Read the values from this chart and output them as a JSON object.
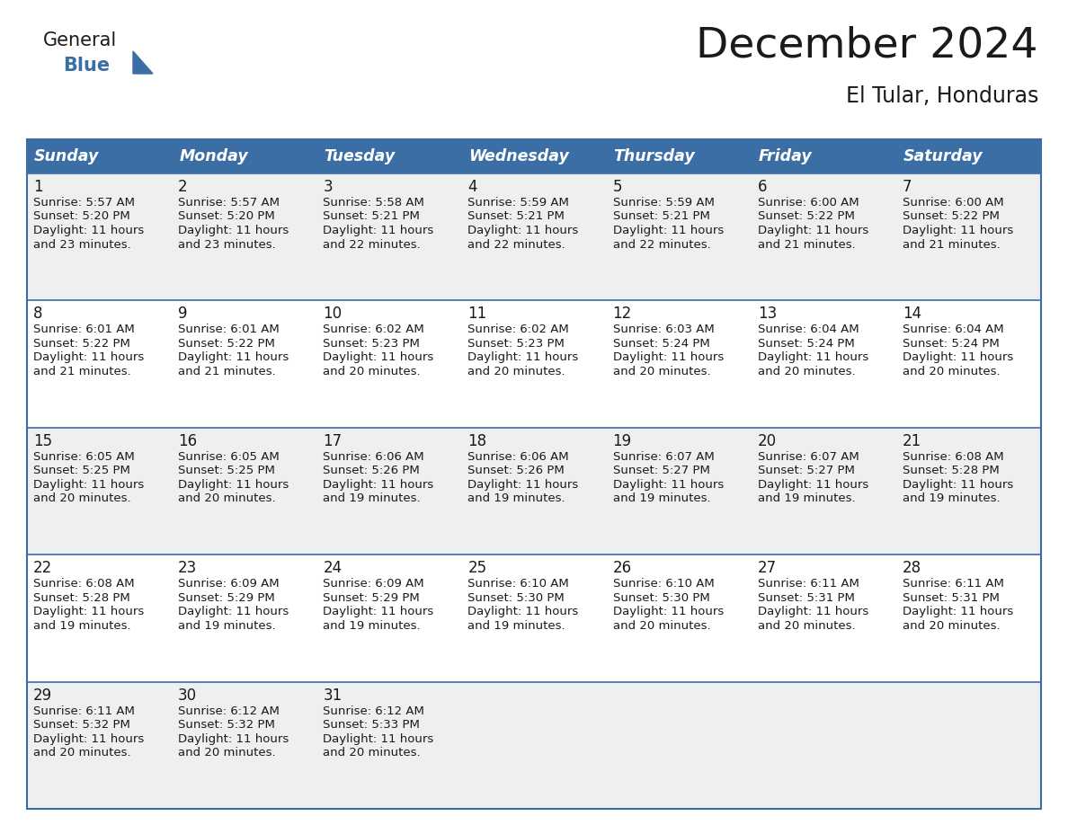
{
  "title": "December 2024",
  "subtitle": "El Tular, Honduras",
  "header_bg_color": "#3A6EA5",
  "header_text_color": "#FFFFFF",
  "cell_bg_even": "#EFEFEF",
  "cell_bg_odd": "#FFFFFF",
  "border_color": "#3A6EA5",
  "text_color": "#1a1a1a",
  "day_headers": [
    "Sunday",
    "Monday",
    "Tuesday",
    "Wednesday",
    "Thursday",
    "Friday",
    "Saturday"
  ],
  "title_fontsize": 34,
  "subtitle_fontsize": 17,
  "header_fontsize": 12.5,
  "day_num_fontsize": 12,
  "cell_text_fontsize": 9.5,
  "weeks": [
    [
      {
        "day": 1,
        "sunrise": "5:57 AM",
        "sunset": "5:20 PM",
        "daylight": "11 hours",
        "daylight2": "and 23 minutes."
      },
      {
        "day": 2,
        "sunrise": "5:57 AM",
        "sunset": "5:20 PM",
        "daylight": "11 hours",
        "daylight2": "and 23 minutes."
      },
      {
        "day": 3,
        "sunrise": "5:58 AM",
        "sunset": "5:21 PM",
        "daylight": "11 hours",
        "daylight2": "and 22 minutes."
      },
      {
        "day": 4,
        "sunrise": "5:59 AM",
        "sunset": "5:21 PM",
        "daylight": "11 hours",
        "daylight2": "and 22 minutes."
      },
      {
        "day": 5,
        "sunrise": "5:59 AM",
        "sunset": "5:21 PM",
        "daylight": "11 hours",
        "daylight2": "and 22 minutes."
      },
      {
        "day": 6,
        "sunrise": "6:00 AM",
        "sunset": "5:22 PM",
        "daylight": "11 hours",
        "daylight2": "and 21 minutes."
      },
      {
        "day": 7,
        "sunrise": "6:00 AM",
        "sunset": "5:22 PM",
        "daylight": "11 hours",
        "daylight2": "and 21 minutes."
      }
    ],
    [
      {
        "day": 8,
        "sunrise": "6:01 AM",
        "sunset": "5:22 PM",
        "daylight": "11 hours",
        "daylight2": "and 21 minutes."
      },
      {
        "day": 9,
        "sunrise": "6:01 AM",
        "sunset": "5:22 PM",
        "daylight": "11 hours",
        "daylight2": "and 21 minutes."
      },
      {
        "day": 10,
        "sunrise": "6:02 AM",
        "sunset": "5:23 PM",
        "daylight": "11 hours",
        "daylight2": "and 20 minutes."
      },
      {
        "day": 11,
        "sunrise": "6:02 AM",
        "sunset": "5:23 PM",
        "daylight": "11 hours",
        "daylight2": "and 20 minutes."
      },
      {
        "day": 12,
        "sunrise": "6:03 AM",
        "sunset": "5:24 PM",
        "daylight": "11 hours",
        "daylight2": "and 20 minutes."
      },
      {
        "day": 13,
        "sunrise": "6:04 AM",
        "sunset": "5:24 PM",
        "daylight": "11 hours",
        "daylight2": "and 20 minutes."
      },
      {
        "day": 14,
        "sunrise": "6:04 AM",
        "sunset": "5:24 PM",
        "daylight": "11 hours",
        "daylight2": "and 20 minutes."
      }
    ],
    [
      {
        "day": 15,
        "sunrise": "6:05 AM",
        "sunset": "5:25 PM",
        "daylight": "11 hours",
        "daylight2": "and 20 minutes."
      },
      {
        "day": 16,
        "sunrise": "6:05 AM",
        "sunset": "5:25 PM",
        "daylight": "11 hours",
        "daylight2": "and 20 minutes."
      },
      {
        "day": 17,
        "sunrise": "6:06 AM",
        "sunset": "5:26 PM",
        "daylight": "11 hours",
        "daylight2": "and 19 minutes."
      },
      {
        "day": 18,
        "sunrise": "6:06 AM",
        "sunset": "5:26 PM",
        "daylight": "11 hours",
        "daylight2": "and 19 minutes."
      },
      {
        "day": 19,
        "sunrise": "6:07 AM",
        "sunset": "5:27 PM",
        "daylight": "11 hours",
        "daylight2": "and 19 minutes."
      },
      {
        "day": 20,
        "sunrise": "6:07 AM",
        "sunset": "5:27 PM",
        "daylight": "11 hours",
        "daylight2": "and 19 minutes."
      },
      {
        "day": 21,
        "sunrise": "6:08 AM",
        "sunset": "5:28 PM",
        "daylight": "11 hours",
        "daylight2": "and 19 minutes."
      }
    ],
    [
      {
        "day": 22,
        "sunrise": "6:08 AM",
        "sunset": "5:28 PM",
        "daylight": "11 hours",
        "daylight2": "and 19 minutes."
      },
      {
        "day": 23,
        "sunrise": "6:09 AM",
        "sunset": "5:29 PM",
        "daylight": "11 hours",
        "daylight2": "and 19 minutes."
      },
      {
        "day": 24,
        "sunrise": "6:09 AM",
        "sunset": "5:29 PM",
        "daylight": "11 hours",
        "daylight2": "and 19 minutes."
      },
      {
        "day": 25,
        "sunrise": "6:10 AM",
        "sunset": "5:30 PM",
        "daylight": "11 hours",
        "daylight2": "and 19 minutes."
      },
      {
        "day": 26,
        "sunrise": "6:10 AM",
        "sunset": "5:30 PM",
        "daylight": "11 hours",
        "daylight2": "and 20 minutes."
      },
      {
        "day": 27,
        "sunrise": "6:11 AM",
        "sunset": "5:31 PM",
        "daylight": "11 hours",
        "daylight2": "and 20 minutes."
      },
      {
        "day": 28,
        "sunrise": "6:11 AM",
        "sunset": "5:31 PM",
        "daylight": "11 hours",
        "daylight2": "and 20 minutes."
      }
    ],
    [
      {
        "day": 29,
        "sunrise": "6:11 AM",
        "sunset": "5:32 PM",
        "daylight": "11 hours",
        "daylight2": "and 20 minutes."
      },
      {
        "day": 30,
        "sunrise": "6:12 AM",
        "sunset": "5:32 PM",
        "daylight": "11 hours",
        "daylight2": "and 20 minutes."
      },
      {
        "day": 31,
        "sunrise": "6:12 AM",
        "sunset": "5:33 PM",
        "daylight": "11 hours",
        "daylight2": "and 20 minutes."
      },
      null,
      null,
      null,
      null
    ]
  ]
}
